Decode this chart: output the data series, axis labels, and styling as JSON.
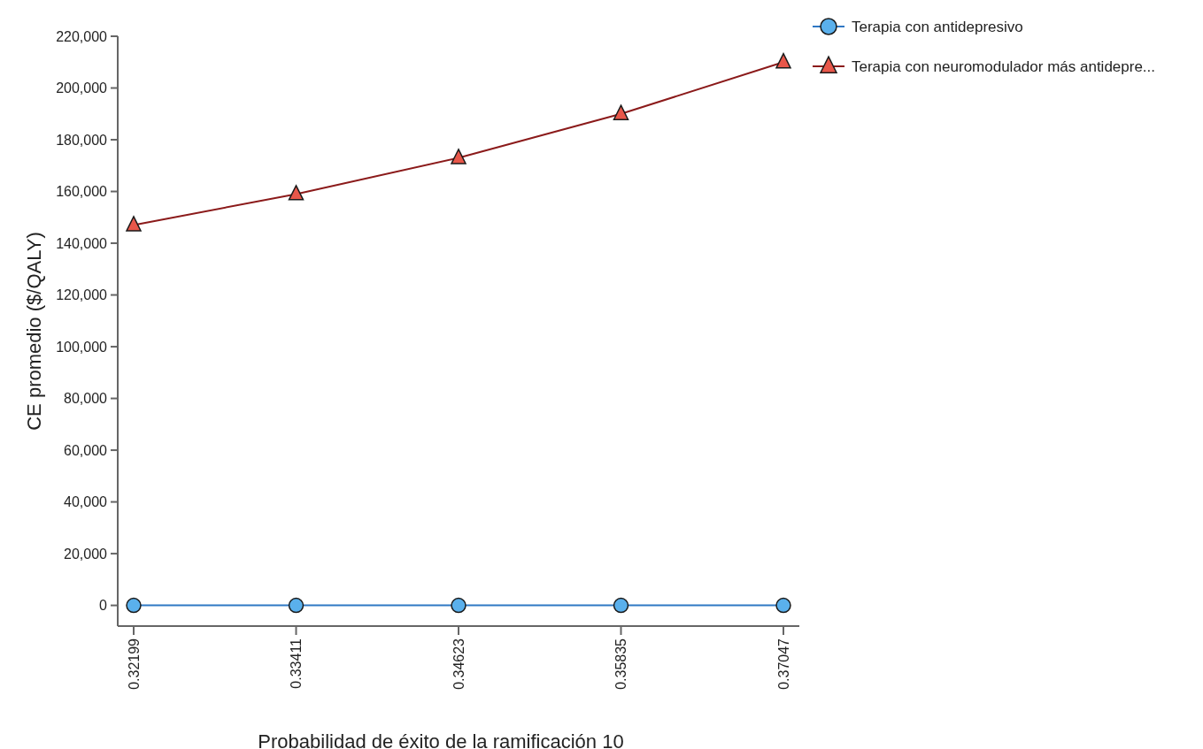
{
  "chart_data": {
    "type": "line",
    "xlabel": "Probabilidad de éxito de la ramificación 10",
    "ylabel": "CE promedio ($/QALY)",
    "categories": [
      "0.32199",
      "0.33411",
      "0.34623",
      "0.35835",
      "0.37047"
    ],
    "series": [
      {
        "name": "Terapia con antidepresivo",
        "color": "#2f78c4",
        "marker": "circle",
        "values": [
          0,
          0,
          0,
          0,
          0
        ]
      },
      {
        "name": "Terapia con neuromodulador más antidepre...",
        "color": "#8b1a1a",
        "marker": "triangle",
        "values": [
          147000,
          159000,
          173000,
          190000,
          210000
        ]
      }
    ],
    "ylim": [
      -8000,
      220000
    ],
    "yticks": [
      {
        "value": 0,
        "label": "0"
      },
      {
        "value": 20000,
        "label": "20,000"
      },
      {
        "value": 40000,
        "label": "40,000"
      },
      {
        "value": 60000,
        "label": "60,000"
      },
      {
        "value": 80000,
        "label": "80,000"
      },
      {
        "value": 100000,
        "label": "100,000"
      },
      {
        "value": 120000,
        "label": "120,000"
      },
      {
        "value": 140000,
        "label": "140,000"
      },
      {
        "value": 160000,
        "label": "160,000"
      },
      {
        "value": 180000,
        "label": "180,000"
      },
      {
        "value": 200000,
        "label": "200,000"
      },
      {
        "value": 220000,
        "label": "220,000"
      }
    ],
    "legend": "top right",
    "grid": false
  }
}
